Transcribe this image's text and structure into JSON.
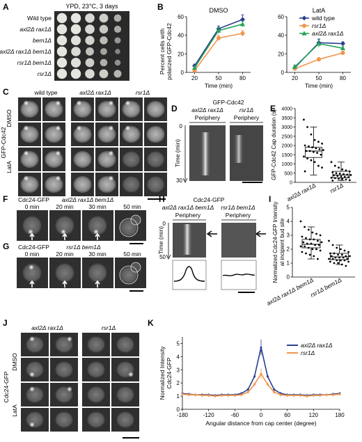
{
  "panels": {
    "A": {
      "letter": "A",
      "title": "YPD, 23°C, 3 days",
      "strains": [
        "Wild type",
        "axl2Δ rax1Δ",
        "bem1Δ",
        "axl2Δ rax1Δ bem1Δ",
        "rsr1Δ bem1Δ",
        "rsr1Δ"
      ],
      "growth": [
        [
          1.0,
          1.0,
          0.9,
          0.8,
          0.55
        ],
        [
          1.0,
          1.0,
          0.9,
          0.75,
          0.5
        ],
        [
          1.0,
          0.95,
          0.85,
          0.65,
          0.35
        ],
        [
          1.0,
          0.9,
          0.7,
          0.45,
          0.2
        ],
        [
          1.0,
          0.95,
          0.8,
          0.55,
          0.3
        ],
        [
          1.0,
          1.0,
          0.9,
          0.8,
          0.6
        ]
      ]
    },
    "B": {
      "letter": "B",
      "ylabel_line1": "Percent cells with",
      "ylabel_line2": "polarized GFP-Cdc42"
    },
    "C": {
      "letter": "C",
      "cols": [
        "wild type",
        "axl2Δ rax1Δ",
        "rsr1Δ"
      ],
      "row_labels": [
        "DMSO",
        "LatA"
      ],
      "side_label": "GFP-Cdc42"
    },
    "D": {
      "letter": "D",
      "title": "GFP-Cdc42",
      "strains": [
        "axl2Δ rax1Δ",
        "rsr1Δ"
      ],
      "periphery": "Periphery",
      "ylabel": "Time (min)",
      "t0": "0",
      "t1": "30"
    },
    "E": {
      "letter": "E",
      "ylabel": "GFP-Cdc42 Cap duration (s)",
      "ticks": [
        "0",
        "500",
        "1000",
        "1500",
        "2000",
        "2500",
        "3000",
        "3500",
        "4000"
      ],
      "groups": [
        "axl2Δ rax1Δ",
        "rsr1Δ"
      ]
    },
    "F": {
      "letter": "F",
      "probe": "Cdc24-GFP",
      "strain": "axl2Δ rax1Δ bem1Δ",
      "times": [
        "0 min",
        "20 min",
        "30 min",
        "50 min"
      ]
    },
    "G": {
      "letter": "G",
      "probe": "Cdc24-GFP",
      "strain": "rsr1Δ bem1Δ",
      "times": [
        "0 min",
        "20 min",
        "30 min",
        "50 min"
      ]
    },
    "H": {
      "letter": "H",
      "title": "Cdc24-GFP",
      "strains": [
        "axl2Δ rax1Δ bem1Δ",
        "rsr1Δ bem1Δ"
      ],
      "periphery": "Periphery",
      "ylabel": "Time (min)",
      "t0": "0",
      "t1": "50"
    },
    "I": {
      "letter": "I",
      "ylabel_line1": "Normalized Cdc24-GFP Intensity",
      "ylabel_line2": "at incipient bud site",
      "ticks": [
        "0",
        "1",
        "2",
        "3",
        "4",
        "5"
      ],
      "groups": [
        "axl2Δ rax1Δ bem1Δ",
        "rsr1Δ bem1Δ"
      ]
    },
    "J": {
      "letter": "J",
      "cols": [
        "axl2Δ rax1Δ",
        "rsr1Δ"
      ],
      "row_labels": [
        "DMSO",
        "LatA"
      ],
      "side_label": "Cdc24-GFP"
    },
    "K": {
      "letter": "K"
    }
  },
  "chart_data": [
    {
      "panel": "B-left",
      "type": "line",
      "title": "DMSO",
      "xlabel": "Time (min)",
      "ylabel": "Percent cells with polarized GFP-Cdc42",
      "x": [
        20,
        50,
        80
      ],
      "xticks": [
        "20",
        "50",
        "80"
      ],
      "yticks": [
        "0",
        "20",
        "40",
        "60"
      ],
      "ylim": [
        0,
        60
      ],
      "series": [
        {
          "name": "wild type",
          "color": "#2a3f8f",
          "marker": "diamond",
          "values": [
            7,
            47,
            57
          ],
          "errors": [
            2,
            3,
            5
          ]
        },
        {
          "name": "rsr1Δ",
          "color": "#f0954b",
          "marker": "circle",
          "values": [
            2,
            37,
            42
          ],
          "errors": [
            1,
            3,
            3
          ]
        },
        {
          "name": "axl2Δ rax1Δ",
          "color": "#27a25a",
          "marker": "triangle",
          "values": [
            5,
            45,
            52
          ],
          "errors": [
            2,
            3,
            3
          ]
        }
      ]
    },
    {
      "panel": "B-right",
      "type": "line",
      "title": "LatA",
      "xlabel": "Time (min)",
      "x": [
        20,
        50,
        80
      ],
      "xticks": [
        "20",
        "50",
        "80"
      ],
      "yticks": [
        "0",
        "20",
        "40",
        "60"
      ],
      "ylim": [
        0,
        60
      ],
      "legend": "top-right",
      "series": [
        {
          "name": "wild type",
          "color": "#2a3f8f",
          "marker": "diamond",
          "values": [
            5,
            32,
            31
          ],
          "errors": [
            2,
            4,
            2
          ]
        },
        {
          "name": "rsr1Δ",
          "color": "#f0954b",
          "marker": "circle",
          "values": [
            4,
            14,
            21
          ],
          "errors": [
            1,
            2,
            2
          ]
        },
        {
          "name": "axl2Δ rax1Δ",
          "color": "#27a25a",
          "marker": "triangle",
          "values": [
            6,
            31,
            26
          ],
          "errors": [
            2,
            4,
            2
          ]
        }
      ]
    },
    {
      "panel": "E",
      "type": "scatter",
      "ylabel": "GFP-Cdc42 Cap duration (s)",
      "categories": [
        "axl2Δ rax1Δ",
        "rsr1Δ"
      ],
      "ylim": [
        0,
        4000
      ],
      "box": [
        {
          "min": 400,
          "q1": 1350,
          "median": 1700,
          "q3": 1900,
          "max": 3000
        },
        {
          "min": 100,
          "q1": 250,
          "median": 400,
          "q3": 600,
          "max": 1100
        }
      ],
      "points": [
        [
          3400,
          3000,
          2600,
          2300,
          2200,
          2100,
          2000,
          1950,
          1900,
          1850,
          1800,
          1750,
          1700,
          1700,
          1650,
          1600,
          1500,
          1400,
          1300,
          1200,
          1100,
          900,
          800,
          600
        ],
        [
          1100,
          900,
          800,
          700,
          650,
          600,
          550,
          500,
          480,
          450,
          420,
          400,
          380,
          350,
          320,
          300,
          280,
          250,
          230,
          200,
          180,
          150,
          120,
          100
        ]
      ]
    },
    {
      "panel": "I",
      "type": "scatter",
      "ylabel": "Normalized Cdc24-GFP Intensity at incipient bud site",
      "categories": [
        "axl2Δ rax1Δ bem1Δ",
        "rsr1Δ bem1Δ"
      ],
      "ylim": [
        0,
        5
      ],
      "box": [
        {
          "min": 1.3,
          "q1": 2.1,
          "median": 2.35,
          "q3": 2.7,
          "max": 3.6
        },
        {
          "min": 0.9,
          "q1": 1.25,
          "median": 1.45,
          "q3": 1.7,
          "max": 2.3
        }
      ],
      "points": [
        [
          4.0,
          3.6,
          3.4,
          3.2,
          3.1,
          3.0,
          2.9,
          2.8,
          2.7,
          2.7,
          2.6,
          2.5,
          2.5,
          2.4,
          2.4,
          2.3,
          2.3,
          2.2,
          2.2,
          2.1,
          2.0,
          2.0,
          1.9,
          1.8,
          1.7,
          1.6,
          1.5,
          1.3
        ],
        [
          2.6,
          2.3,
          2.1,
          2.0,
          1.9,
          1.8,
          1.7,
          1.7,
          1.6,
          1.6,
          1.5,
          1.5,
          1.5,
          1.4,
          1.4,
          1.4,
          1.3,
          1.3,
          1.3,
          1.2,
          1.2,
          1.2,
          1.1,
          1.1,
          1.0,
          1.0,
          0.9,
          0.8
        ]
      ]
    },
    {
      "panel": "K",
      "type": "line",
      "xlabel": "Angular distance from cap center (degree)",
      "ylabel_line1": "Normalized Intensity",
      "ylabel_line2": "Cdc24-GFP",
      "xticks": [
        "-180",
        "-120",
        "-60",
        "0",
        "60",
        "120",
        "180"
      ],
      "yticks": [
        "0",
        "1",
        "2",
        "3",
        "4",
        "5"
      ],
      "xlim": [
        -180,
        180
      ],
      "ylim": [
        0,
        5.5
      ],
      "legend": "top-right",
      "x": [
        -180,
        -165,
        -150,
        -135,
        -120,
        -105,
        -90,
        -75,
        -60,
        -45,
        -30,
        -15,
        0,
        15,
        30,
        45,
        60,
        75,
        90,
        105,
        120,
        135,
        150,
        165,
        180
      ],
      "series": [
        {
          "name": "axl2Δ rax1Δ",
          "color": "#2a3f8f",
          "values": [
            1.2,
            1.15,
            1.1,
            1.1,
            1.1,
            1.05,
            1.1,
            1.1,
            1.1,
            1.2,
            1.5,
            2.5,
            4.7,
            2.5,
            1.5,
            1.2,
            1.1,
            1.1,
            1.1,
            1.05,
            1.1,
            1.1,
            1.1,
            1.15,
            1.2
          ]
        },
        {
          "name": "rsr1Δ",
          "color": "#f0954b",
          "values": [
            1.15,
            1.1,
            1.1,
            1.05,
            1.05,
            1.0,
            1.05,
            1.05,
            1.05,
            1.1,
            1.3,
            1.9,
            2.7,
            1.9,
            1.3,
            1.1,
            1.05,
            1.05,
            1.05,
            1.0,
            1.05,
            1.05,
            1.1,
            1.1,
            1.15
          ]
        }
      ]
    }
  ]
}
